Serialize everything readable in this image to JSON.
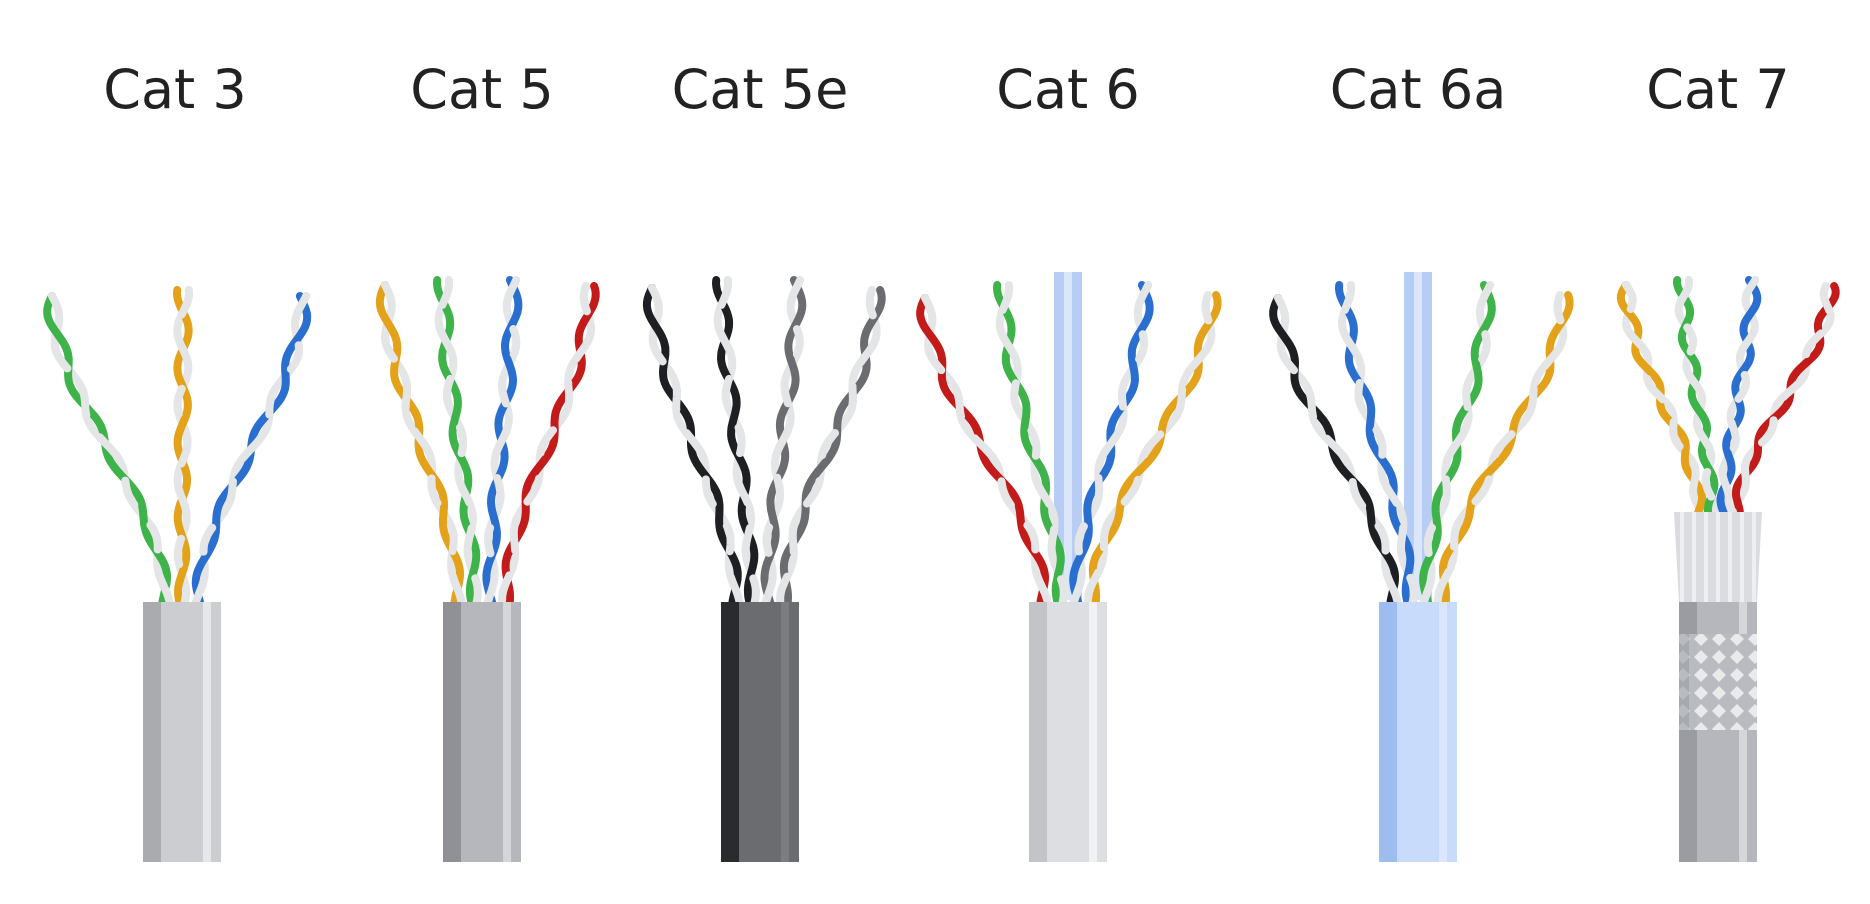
{
  "cables": [
    {
      "label": "Cat 3",
      "jacket": {
        "base": "#cbcdd0",
        "light": "#e6e7e9",
        "dark": "#a9abaf",
        "pattern": "solid"
      },
      "wires": [
        "#3db34a",
        "#e3a21a",
        "#2a6fcf"
      ],
      "spline": null
    },
    {
      "label": "Cat 5",
      "jacket": {
        "base": "#b5b7bd",
        "light": "#d5d6da",
        "dark": "#8f9197",
        "pattern": "solid"
      },
      "wires": [
        "#e3a21a",
        "#3db34a",
        "#2a6fcf",
        "#c31a1a"
      ],
      "spline": null
    },
    {
      "label": "Cat 5e",
      "jacket": {
        "base": "#6b6c70",
        "light": "#7c7d81",
        "dark": "#2a2b2e",
        "pattern": "solid"
      },
      "wires": [
        "#1e1f22",
        "#1e1f22",
        "#6b6c70",
        "#6b6c70"
      ],
      "spline": null
    },
    {
      "label": "Cat 6",
      "jacket": {
        "base": "#dcdee1",
        "light": "#f1f2f3",
        "dark": "#c2c4c8",
        "pattern": "solid"
      },
      "wires": [
        "#c31a1a",
        "#3db34a",
        "#2a6fcf",
        "#e3a21a"
      ],
      "spline": "#b8cdf4"
    },
    {
      "label": "Cat 6a",
      "jacket": {
        "base": "#c9dbfa",
        "light": "#dbe6fb",
        "dark": "#9dbdf1",
        "pattern": "solid"
      },
      "wires": [
        "#1e1f22",
        "#2a6fcf",
        "#3db34a",
        "#e3a21a"
      ],
      "spline": "#b8cdf4"
    },
    {
      "label": "Cat 7",
      "jacket": {
        "base": "#b5b7bd",
        "light": "#d5d6da",
        "dark": "#9a9ca2",
        "pattern": "braided"
      },
      "wires": [
        "#e3a21a",
        "#3db34a",
        "#2a6fcf",
        "#c31a1a"
      ],
      "spline": null
    }
  ]
}
